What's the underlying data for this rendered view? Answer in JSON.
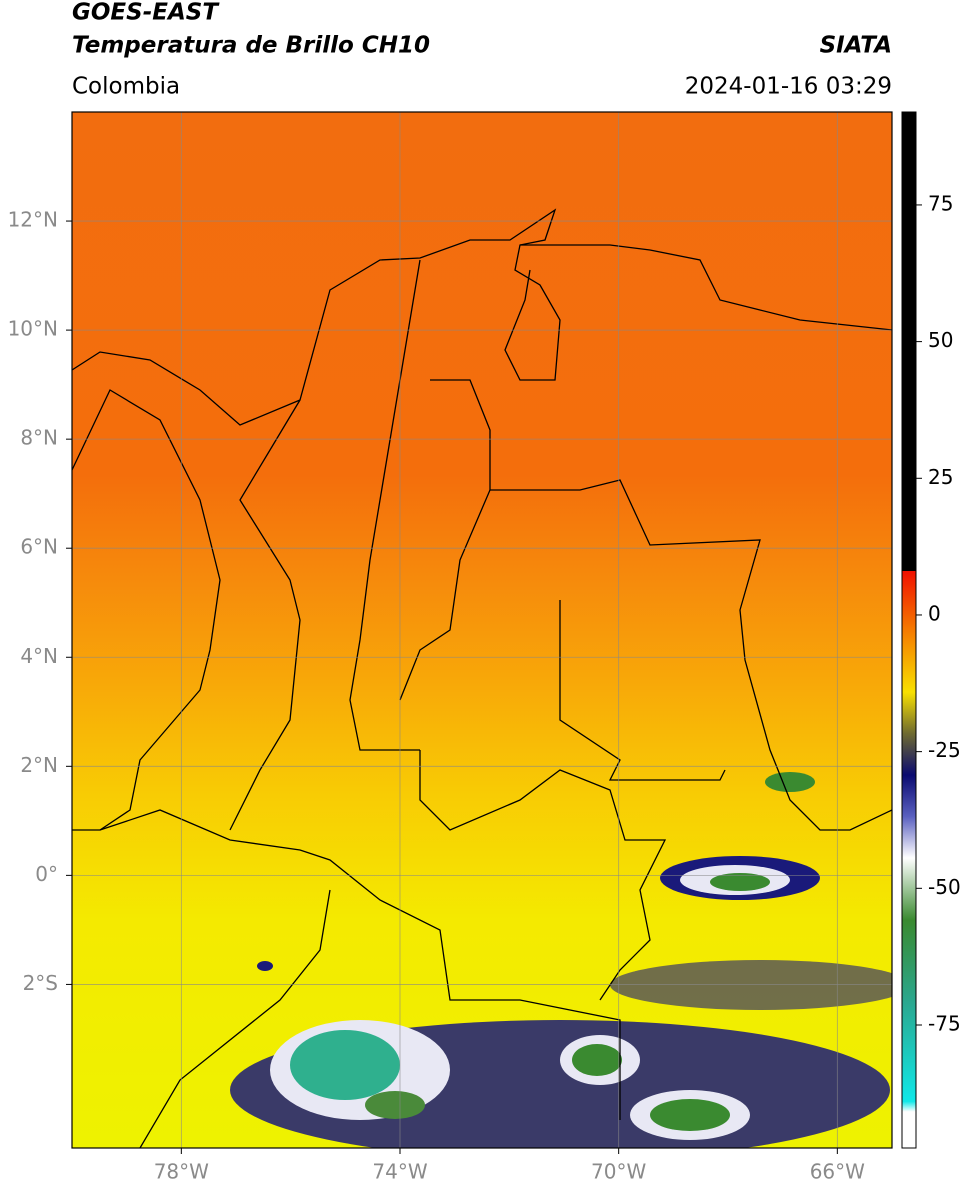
{
  "header": {
    "title": "GOES-EAST",
    "subtitle": "Temperatura de Brillo CH10",
    "region": "Colombia",
    "source": "SIATA",
    "datetime": "2024-01-16 03:29"
  },
  "map": {
    "xlim": [
      -80,
      -65
    ],
    "ylim": [
      -5,
      14
    ],
    "grid": true,
    "xticks": [
      {
        "value": -78,
        "label": "78°W"
      },
      {
        "value": -74,
        "label": "74°W"
      },
      {
        "value": -70,
        "label": "70°W"
      },
      {
        "value": -66,
        "label": "66°W"
      }
    ],
    "yticks": [
      {
        "value": 12,
        "label": "12°N"
      },
      {
        "value": 10,
        "label": "10°N"
      },
      {
        "value": 8,
        "label": "8°N"
      },
      {
        "value": 6,
        "label": "6°N"
      },
      {
        "value": 4,
        "label": "4°N"
      },
      {
        "value": 2,
        "label": "2°N"
      },
      {
        "value": 0,
        "label": "0°"
      },
      {
        "value": -2,
        "label": "2°S"
      }
    ]
  },
  "colorbar": {
    "lim": [
      -97.5,
      92
    ],
    "ticks": [
      75,
      50,
      25,
      0,
      -25,
      -50,
      -75
    ]
  }
}
